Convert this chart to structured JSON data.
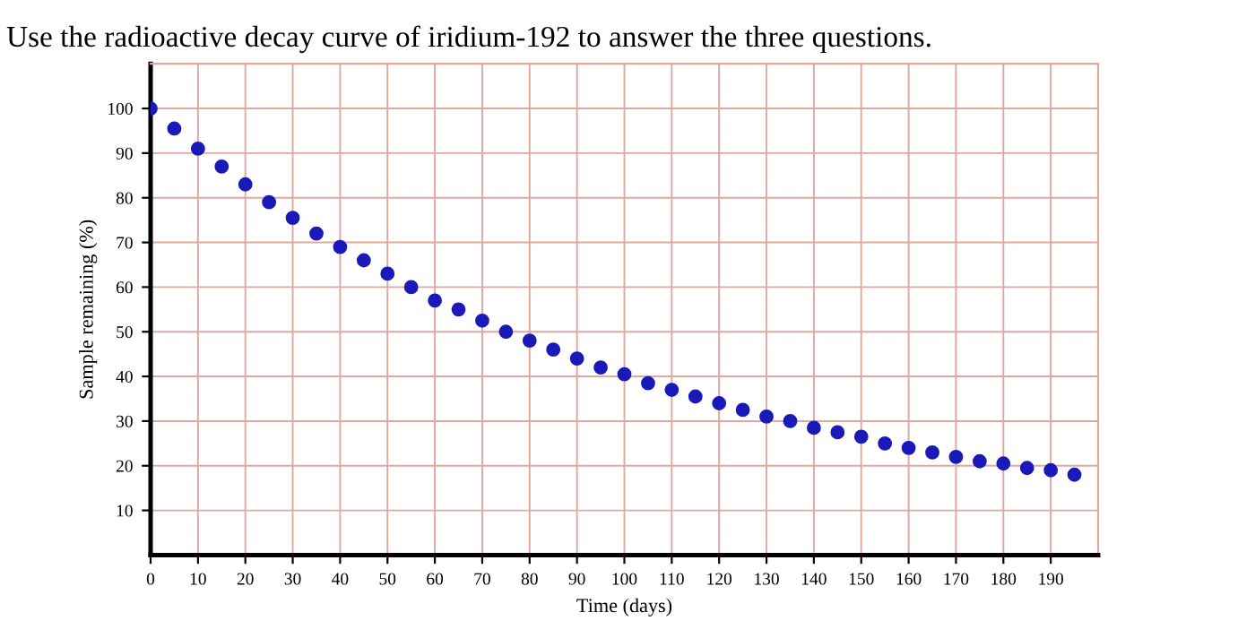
{
  "chart_data": {
    "type": "scatter",
    "title": "Use the radioactive decay curve of iridium-192 to answer the three questions.",
    "xlabel": "Time (days)",
    "ylabel": "Sample remaining (%)",
    "x": [
      0,
      5,
      10,
      15,
      20,
      25,
      30,
      35,
      40,
      45,
      50,
      55,
      60,
      65,
      70,
      75,
      80,
      85,
      90,
      95,
      100,
      105,
      110,
      115,
      120,
      125,
      130,
      135,
      140,
      145,
      150,
      155,
      160,
      165,
      170,
      175,
      180,
      185,
      190,
      195
    ],
    "series": [
      {
        "color": "#1a1ab8",
        "values": [
          100,
          95.5,
          91,
          87,
          83,
          79,
          75.5,
          72,
          69,
          66,
          63,
          60,
          57,
          55,
          52.5,
          50,
          48,
          46,
          44,
          42,
          40.5,
          38.5,
          37,
          35.5,
          34,
          32.5,
          31,
          30,
          28.5,
          27.5,
          26.5,
          25,
          24,
          23,
          22,
          21,
          20.5,
          19.5,
          19,
          18
        ]
      }
    ],
    "xlim": [
      0,
      200
    ],
    "ylim": [
      0,
      110
    ],
    "xticks": [
      0,
      10,
      20,
      30,
      40,
      50,
      60,
      70,
      80,
      90,
      100,
      110,
      120,
      130,
      140,
      150,
      160,
      170,
      180,
      190
    ],
    "yticks": [
      10,
      20,
      30,
      40,
      50,
      60,
      70,
      80,
      90,
      100
    ],
    "grid": true,
    "marker": "circle"
  }
}
